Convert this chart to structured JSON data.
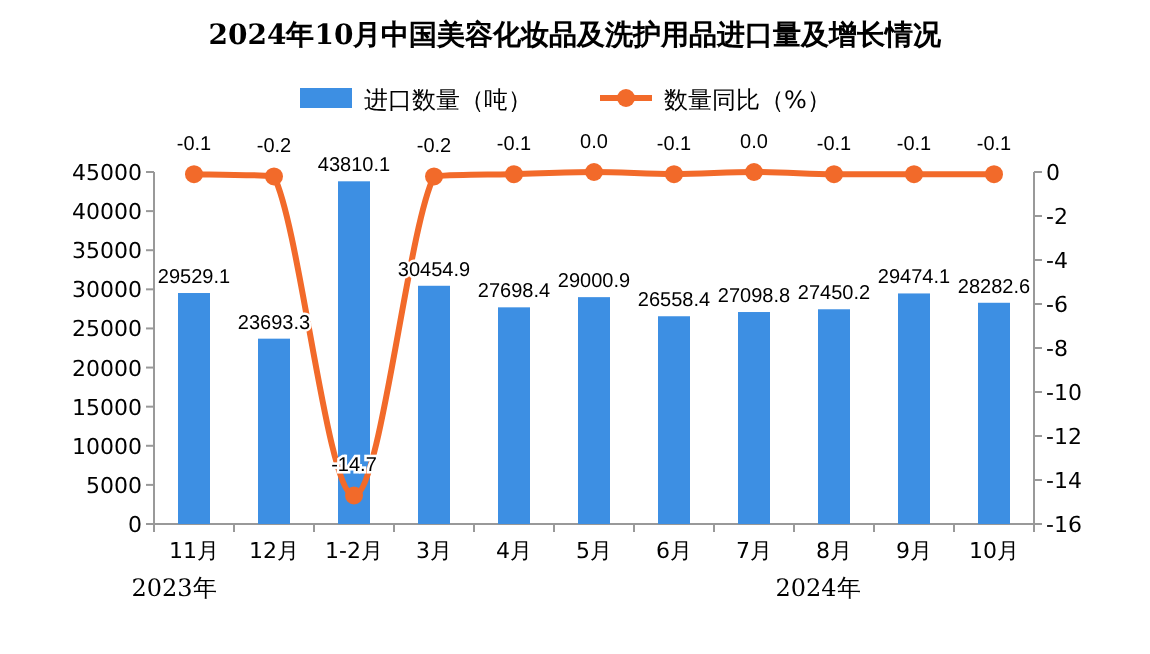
{
  "chart_data": {
    "type": "bar",
    "title": "2024年10月中国美容化妆品及洗护用品进口量及增长情况",
    "categories": [
      "11月",
      "12月",
      "1-2月",
      "3月",
      "4月",
      "5月",
      "6月",
      "7月",
      "8月",
      "9月",
      "10月"
    ],
    "series": [
      {
        "name": "进口数量（吨）",
        "color": "#3d8fe3",
        "values": [
          29529.1,
          23693.3,
          43810.1,
          30454.9,
          27698.4,
          29000.9,
          26558.4,
          27098.8,
          27450.2,
          29474.1,
          28282.6
        ]
      },
      {
        "name": "数量同比（%）",
        "type": "line",
        "axis": "y2",
        "color": "#f26a2a",
        "marker": "circle",
        "values": [
          -0.1,
          -0.2,
          -14.7,
          -0.2,
          -0.1,
          0.0,
          -0.1,
          0.0,
          -0.1,
          -0.1,
          -0.1
        ],
        "value_labels": [
          "-0.1",
          "-0.2",
          "-14.7",
          "-0.2",
          "-0.1",
          "0.0",
          "-0.1",
          "0.0",
          "-0.1",
          "-0.1",
          "-0.1"
        ]
      }
    ],
    "ylim": [
      0,
      45000
    ],
    "yticks": [
      0,
      5000,
      10000,
      15000,
      20000,
      25000,
      30000,
      35000,
      40000,
      45000
    ],
    "y2lim": [
      -16,
      0
    ],
    "y2ticks": [
      0,
      -2,
      -4,
      -6,
      -8,
      -10,
      -12,
      -14,
      -16
    ],
    "data_labels": true,
    "legend": "top",
    "grid": false,
    "annotations": [
      "2023年",
      "2024年"
    ]
  }
}
